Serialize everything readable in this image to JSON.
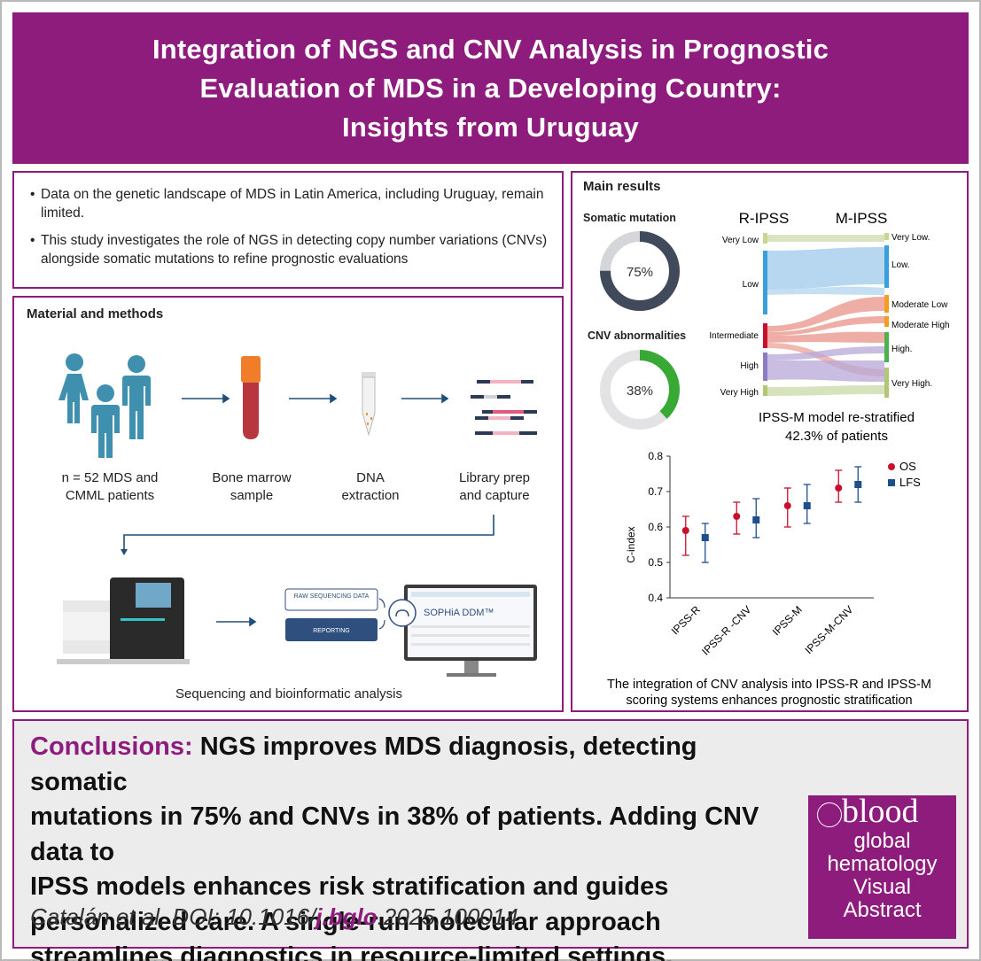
{
  "title": "Integration of NGS and CNV Analysis in Prognostic Evaluation of MDS in a Developing Country: Insights from Uruguay",
  "title_lines": [
    "Integration of NGS and CNV Analysis in Prognostic",
    "Evaluation of MDS in a Developing Country:",
    "Insights from Uruguay"
  ],
  "intro": {
    "bullets": [
      "Data on the genetic landscape of MDS in Latin America, including Uruguay, remain limited.",
      "This study investigates the role of NGS in detecting copy number variations (CNVs) alongside somatic mutations to refine prognostic evaluations"
    ]
  },
  "methods": {
    "title": "Material and methods",
    "steps": [
      {
        "line1": "n = 52 MDS and",
        "line2": "CMML patients"
      },
      {
        "line1": "Bone marrow",
        "line2": "sample"
      },
      {
        "line1": "DNA",
        "line2": "extraction"
      },
      {
        "line1": "Library prep",
        "line2": "and capture"
      }
    ],
    "pipeline": {
      "raw": "RAW SEQUENCING DATA",
      "reporting": "REPORTING",
      "brand": "SOPHiA DDM™"
    },
    "caption": "Sequencing and bioinformatic analysis"
  },
  "results": {
    "title": "Main results",
    "donut1": {
      "label": "Somatic mutation",
      "value_text": "75%",
      "value": 0.75,
      "color": "#404a5a"
    },
    "donut2": {
      "label": "CNV abnormalities",
      "value_text": "38%",
      "value": 0.38,
      "color": "#39a935"
    },
    "sankey": {
      "left_title": "R-IPSS",
      "right_title": "M-IPSS",
      "left": [
        "Very Low",
        "Low",
        "Intermediate",
        "High",
        "Very High"
      ],
      "right": [
        "Very Low.",
        "Low.",
        "Moderate Low",
        "Moderate High",
        "High.",
        "Very High."
      ],
      "caption1": "IPSS-M model re-stratified",
      "caption2": "42.3% of patients"
    },
    "chart_data": {
      "type": "scatter",
      "xlabel": "",
      "ylabel": "C-index",
      "ylim": [
        0.4,
        0.8
      ],
      "yticks": [
        "0.4",
        "0.5",
        "0.6",
        "0.7",
        "0.8"
      ],
      "categories": [
        "IPSS-R",
        "IPSS-R -CNV",
        "IPSS-M",
        "IPSS-M-CNV"
      ],
      "series": [
        {
          "name": "OS",
          "color": "#c8102e",
          "values": [
            0.59,
            0.63,
            0.66,
            0.71
          ],
          "lower": [
            0.52,
            0.58,
            0.6,
            0.67
          ],
          "upper": [
            0.63,
            0.67,
            0.71,
            0.76
          ]
        },
        {
          "name": "LFS",
          "color": "#1f4e8c",
          "values": [
            0.57,
            0.62,
            0.66,
            0.72
          ],
          "lower": [
            0.5,
            0.57,
            0.61,
            0.67
          ],
          "upper": [
            0.61,
            0.68,
            0.72,
            0.77
          ]
        }
      ]
    },
    "caption1": "The integration of CNV analysis into IPSS-R and IPSS-M",
    "caption2": "scoring systems enhances prognostic stratification"
  },
  "conclusions": {
    "label": "Conclusions:",
    "lines": [
      "NGS improves MDS diagnosis, detecting somatic",
      "mutations in 75% and CNVs in 38% of patients. Adding CNV data to",
      "IPSS models enhances risk stratification and guides",
      "personalized care. A single-run molecular approach",
      "streamlines diagnostics in resource-limited settings."
    ],
    "cite_pre": "Catalán et al. DOI: 10.1016/",
    "cite_bold": "j.bglo",
    "cite_post": ".2025.100014"
  },
  "logo": {
    "word1": "blood",
    "word2": "global",
    "word3": "hematology",
    "word4": "Visual",
    "word5": "Abstract"
  }
}
